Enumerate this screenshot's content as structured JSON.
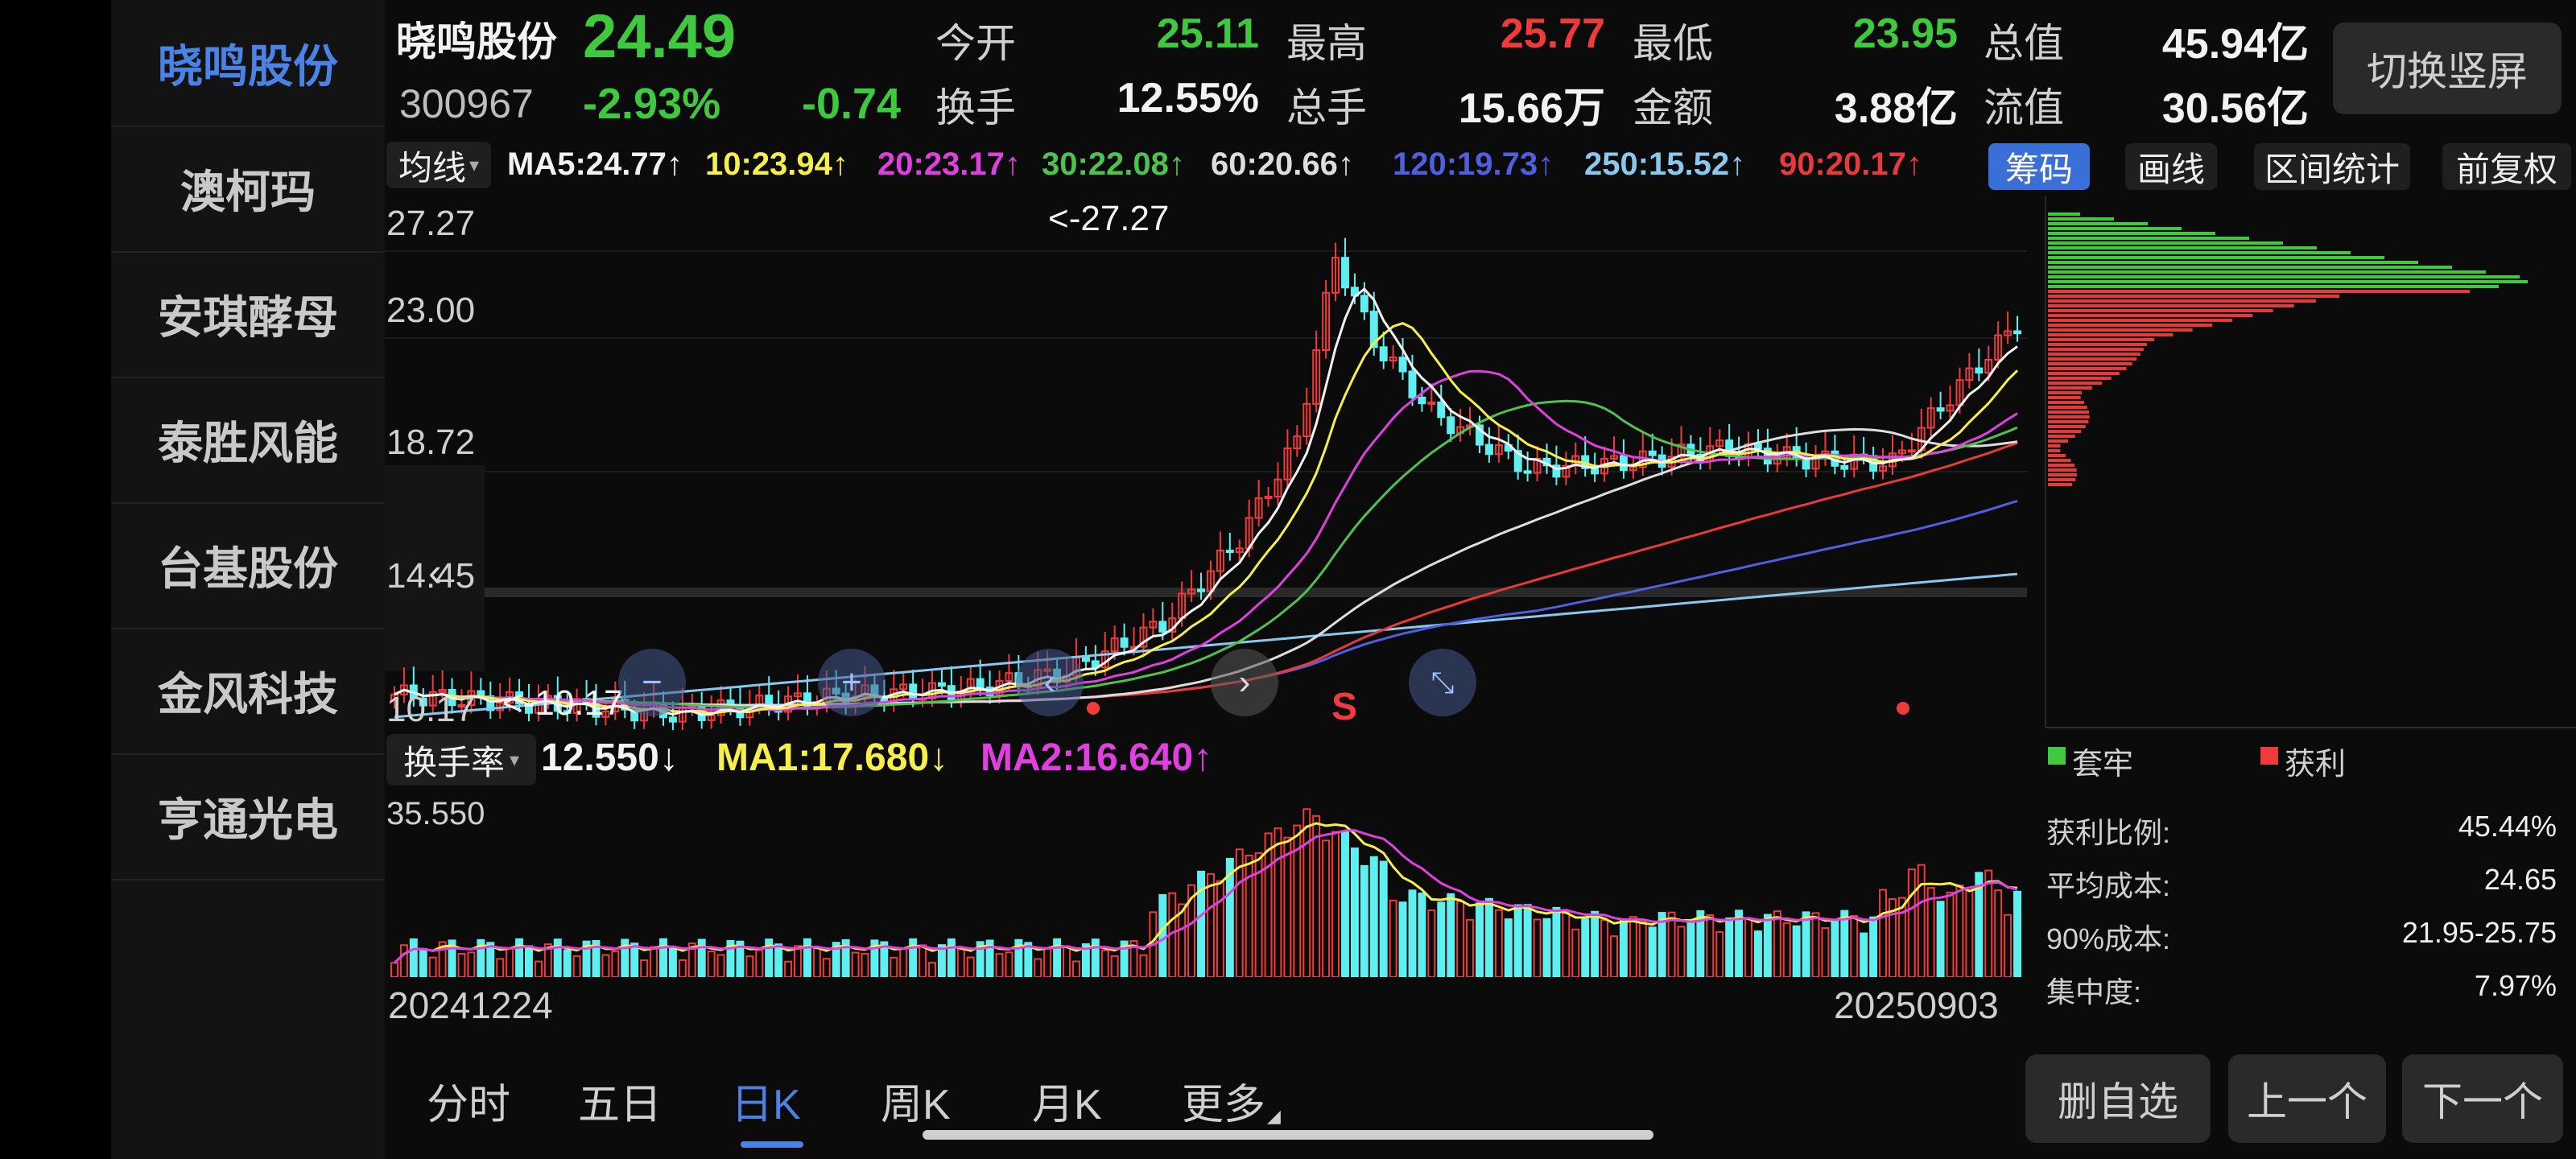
{
  "sidebar": {
    "items": [
      {
        "label": "晓鸣股份",
        "active": true
      },
      {
        "label": "澳柯玛",
        "active": false
      },
      {
        "label": "安琪酵母",
        "active": false
      },
      {
        "label": "泰胜风能",
        "active": false
      },
      {
        "label": "台基股份",
        "active": false
      },
      {
        "label": "金风科技",
        "active": false
      },
      {
        "label": "亨通光电",
        "active": false
      }
    ]
  },
  "quote": {
    "name": "晓鸣股份",
    "code": "300967",
    "price": "24.49",
    "change_pct": "-2.93%",
    "change": "-0.74",
    "open_label": "今开",
    "open": "25.11",
    "high_label": "最高",
    "high": "25.77",
    "low_label": "最低",
    "low": "23.95",
    "mktcap_label": "总值",
    "mktcap": "45.94亿",
    "turnover_label": "换手",
    "turnover": "12.55%",
    "volume_label": "总手",
    "volume": "15.66万",
    "amount_label": "金额",
    "amount": "3.88亿",
    "float_label": "流值",
    "float": "30.56亿",
    "switch_button": "切换竖屏"
  },
  "ma_bar": {
    "selector": "均线",
    "items": [
      {
        "text": "MA5:24.77↑",
        "color": "#f2f2f2"
      },
      {
        "text": "10:23.94↑",
        "color": "#f6ef4a"
      },
      {
        "text": "20:23.17↑",
        "color": "#e040e0"
      },
      {
        "text": "30:22.08↑",
        "color": "#4ec24e"
      },
      {
        "text": "60:20.66↑",
        "color": "#dddddd"
      },
      {
        "text": "120:19.73↑",
        "color": "#4f5fe0"
      },
      {
        "text": "250:15.52↑",
        "color": "#8ac8f0"
      },
      {
        "text": "90:20.17↑",
        "color": "#e83a3a"
      }
    ],
    "buttons": {
      "chips": "筹码",
      "draw": "画线",
      "range": "区间统计",
      "adjust": "前复权"
    }
  },
  "kline": {
    "ticks": [
      "27.27",
      "23.00",
      "18.72",
      "14.45",
      "10.17"
    ],
    "max_label": "<-27.27",
    "min_label": "<-10.17",
    "sell_marker": "S"
  },
  "turnover_panel": {
    "selector": "换手率",
    "value": "12.550↓",
    "ma1": "MA1:17.680↓",
    "ma2": "MA2:16.640↑",
    "top_tick": "35.550",
    "start_date": "20241224",
    "end_date": "20250903"
  },
  "chips": {
    "legend_trapped": "套牢",
    "legend_profit": "获利",
    "stats": [
      {
        "label": "获利比例:",
        "value": "45.44%"
      },
      {
        "label": "平均成本:",
        "value": "24.65"
      },
      {
        "label": "90%成本:",
        "value": "21.95-25.75"
      },
      {
        "label": "集中度:",
        "value": "7.97%"
      }
    ]
  },
  "tabs": [
    {
      "label": "分时",
      "active": false
    },
    {
      "label": "五日",
      "active": false
    },
    {
      "label": "日K",
      "active": true
    },
    {
      "label": "周K",
      "active": false
    },
    {
      "label": "月K",
      "active": false
    },
    {
      "label": "更多",
      "active": false
    }
  ],
  "actions": {
    "remove": "删自选",
    "prev": "上一个",
    "next": "下一个"
  },
  "colors": {
    "up": "#f13b3b",
    "down": "#3ec93e",
    "accent": "#4a82e6",
    "cyan": "#5ef0f0"
  }
}
